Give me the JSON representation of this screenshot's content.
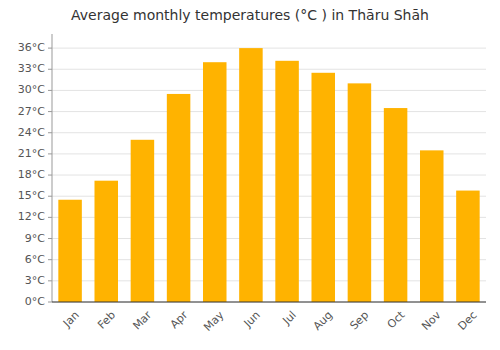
{
  "chart_data": {
    "type": "bar",
    "title": "Average monthly temperatures (°C ) in Thāru Shāh",
    "categories": [
      "Jan",
      "Feb",
      "Mar",
      "Apr",
      "May",
      "Jun",
      "Jul",
      "Aug",
      "Sep",
      "Oct",
      "Nov",
      "Dec"
    ],
    "values": [
      14.5,
      17.2,
      23.0,
      29.5,
      34.0,
      36.0,
      34.2,
      32.5,
      31.0,
      27.5,
      21.5,
      15.8
    ],
    "color": "#FFB300",
    "ylim": [
      0,
      38
    ],
    "yticks": [
      {
        "value": 0,
        "label": "0°C"
      },
      {
        "value": 3,
        "label": "3°C"
      },
      {
        "value": 6,
        "label": "6°C"
      },
      {
        "value": 9,
        "label": "9°C"
      },
      {
        "value": 12,
        "label": "12°C"
      },
      {
        "value": 15,
        "label": "15°C"
      },
      {
        "value": 18,
        "label": "18°C"
      },
      {
        "value": 21,
        "label": "21°C"
      },
      {
        "value": 24,
        "label": "24°C"
      },
      {
        "value": 27,
        "label": "27°C"
      },
      {
        "value": 30,
        "label": "30°C"
      },
      {
        "value": 33,
        "label": "33°C"
      },
      {
        "value": 36,
        "label": "36°C"
      }
    ],
    "grid": true
  }
}
